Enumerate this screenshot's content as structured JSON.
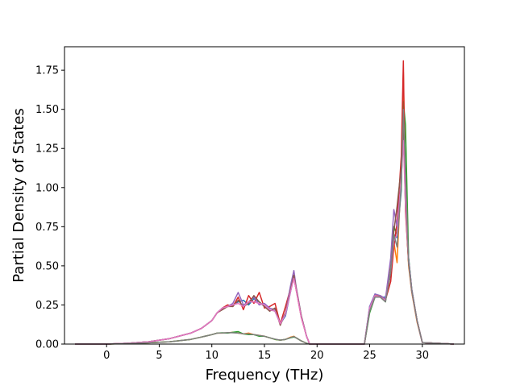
{
  "chart_data": {
    "type": "line",
    "title": "",
    "xlabel": "Frequency (THz)",
    "ylabel": "Partial Density of States",
    "xlim": [
      -4.0,
      34.0
    ],
    "ylim": [
      0.0,
      1.9
    ],
    "xticks": [
      0,
      5,
      10,
      15,
      20,
      25,
      30
    ],
    "xtick_labels": [
      "0",
      "5",
      "10",
      "15",
      "20",
      "25",
      "30"
    ],
    "yticks": [
      0.0,
      0.25,
      0.5,
      0.75,
      1.0,
      1.25,
      1.5,
      1.75
    ],
    "ytick_labels": [
      "0.00",
      "0.25",
      "0.50",
      "0.75",
      "1.00",
      "1.25",
      "1.50",
      "1.75"
    ],
    "grid": false,
    "legend": "none",
    "series": [
      {
        "color": "#1f77b4",
        "x": [
          -3,
          0,
          2,
          4,
          6,
          8,
          9,
          10,
          10.5,
          11,
          11.5,
          12,
          12.5,
          13,
          13.5,
          14,
          14.5,
          15,
          15.5,
          16,
          16.5,
          17,
          17.5,
          17.8,
          18,
          18.5,
          19,
          19.3,
          24.5,
          25,
          25.5,
          26,
          26.5,
          27,
          27.3,
          27.6,
          28,
          28.2,
          28.4,
          28.7,
          29,
          29.5,
          30,
          33
        ],
        "y": [
          0,
          0,
          0.005,
          0.015,
          0.035,
          0.07,
          0.1,
          0.15,
          0.2,
          0.23,
          0.24,
          0.25,
          0.27,
          0.28,
          0.25,
          0.29,
          0.27,
          0.24,
          0.22,
          0.21,
          0.13,
          0.18,
          0.34,
          0.43,
          0.36,
          0.18,
          0.05,
          0,
          0,
          0.24,
          0.32,
          0.3,
          0.3,
          0.45,
          0.7,
          0.68,
          0.98,
          1.62,
          0.95,
          0.55,
          0.35,
          0.15,
          0.01,
          0
        ]
      },
      {
        "color": "#ff7f0e",
        "x": [
          -3,
          0,
          2,
          4,
          6,
          8,
          9,
          10,
          10.5,
          11,
          11.5,
          12,
          12.5,
          13,
          13.5,
          14,
          14.5,
          15,
          15.5,
          16,
          16.5,
          17,
          17.5,
          17.8,
          18,
          18.5,
          19,
          19.3,
          24.5,
          25,
          25.5,
          26,
          26.5,
          27,
          27.3,
          27.6,
          28,
          28.2,
          28.4,
          28.7,
          29,
          29.5,
          30,
          33
        ],
        "y": [
          0,
          0,
          0.003,
          0.008,
          0.015,
          0.03,
          0.045,
          0.06,
          0.07,
          0.07,
          0.072,
          0.075,
          0.07,
          0.065,
          0.07,
          0.06,
          0.055,
          0.05,
          0.04,
          0.03,
          0.025,
          0.03,
          0.045,
          0.05,
          0.04,
          0.02,
          0.005,
          0,
          0,
          0.22,
          0.31,
          0.31,
          0.28,
          0.5,
          0.65,
          0.52,
          1.1,
          1.74,
          0.9,
          0.5,
          0.33,
          0.14,
          0.01,
          0
        ]
      },
      {
        "color": "#2ca02c",
        "x": [
          -3,
          0,
          2,
          4,
          6,
          8,
          9,
          10,
          10.5,
          11,
          11.5,
          12,
          12.5,
          13,
          13.5,
          14,
          14.5,
          15,
          15.5,
          16,
          16.5,
          17,
          17.5,
          17.8,
          18,
          18.5,
          19,
          19.3,
          24.5,
          25,
          25.5,
          26,
          26.5,
          27,
          27.3,
          27.6,
          28,
          28.2,
          28.4,
          28.7,
          29,
          29.5,
          30,
          33
        ],
        "y": [
          0,
          0,
          0.003,
          0.008,
          0.015,
          0.03,
          0.045,
          0.06,
          0.07,
          0.072,
          0.07,
          0.075,
          0.08,
          0.065,
          0.06,
          0.06,
          0.05,
          0.05,
          0.04,
          0.03,
          0.025,
          0.03,
          0.04,
          0.045,
          0.04,
          0.02,
          0.005,
          0,
          0,
          0.2,
          0.3,
          0.3,
          0.27,
          0.48,
          0.75,
          0.7,
          1.0,
          1.55,
          1.4,
          0.55,
          0.35,
          0.15,
          0.01,
          0
        ]
      },
      {
        "color": "#d62728",
        "x": [
          -3,
          0,
          2,
          4,
          6,
          8,
          9,
          10,
          10.5,
          11,
          11.5,
          12,
          12.5,
          13,
          13.5,
          14,
          14.5,
          15,
          15.5,
          16,
          16.5,
          17,
          17.5,
          17.8,
          18,
          18.5,
          19,
          19.3,
          24.5,
          25,
          25.5,
          26,
          26.5,
          27,
          27.3,
          27.6,
          28,
          28.2,
          28.4,
          28.7,
          29,
          29.5,
          30,
          33
        ],
        "y": [
          0,
          0,
          0.005,
          0.015,
          0.035,
          0.07,
          0.1,
          0.15,
          0.2,
          0.23,
          0.25,
          0.24,
          0.3,
          0.22,
          0.31,
          0.26,
          0.33,
          0.23,
          0.24,
          0.26,
          0.13,
          0.24,
          0.36,
          0.42,
          0.35,
          0.17,
          0.05,
          0,
          0,
          0.23,
          0.31,
          0.3,
          0.28,
          0.4,
          0.62,
          0.78,
          1.2,
          1.81,
          0.85,
          0.52,
          0.34,
          0.15,
          0.01,
          0
        ]
      },
      {
        "color": "#9467bd",
        "x": [
          -3,
          0,
          2,
          4,
          6,
          8,
          9,
          10,
          10.5,
          11,
          11.5,
          12,
          12.5,
          13,
          13.5,
          14,
          14.5,
          15,
          15.5,
          16,
          16.5,
          17,
          17.5,
          17.8,
          18,
          18.5,
          19,
          19.3,
          24.5,
          25,
          25.5,
          26,
          26.5,
          27,
          27.3,
          27.6,
          28,
          28.2,
          28.4,
          28.7,
          29,
          29.5,
          30,
          33
        ],
        "y": [
          0,
          0,
          0.005,
          0.015,
          0.035,
          0.07,
          0.1,
          0.15,
          0.2,
          0.23,
          0.24,
          0.26,
          0.33,
          0.25,
          0.27,
          0.3,
          0.25,
          0.26,
          0.23,
          0.22,
          0.13,
          0.2,
          0.38,
          0.47,
          0.37,
          0.18,
          0.05,
          0,
          0,
          0.24,
          0.32,
          0.31,
          0.29,
          0.55,
          0.86,
          0.75,
          1.05,
          1.4,
          0.92,
          0.54,
          0.35,
          0.15,
          0.01,
          0
        ]
      },
      {
        "color": "#8c564b",
        "x": [
          -3,
          0,
          2,
          4,
          6,
          8,
          9,
          10,
          10.5,
          11,
          11.5,
          12,
          12.5,
          13,
          13.5,
          14,
          14.5,
          15,
          15.5,
          16,
          16.5,
          17,
          17.5,
          17.8,
          18,
          18.5,
          19,
          19.3,
          24.5,
          25,
          25.5,
          26,
          26.5,
          27,
          27.3,
          27.6,
          28,
          28.2,
          28.4,
          28.7,
          29,
          29.5,
          30,
          33
        ],
        "y": [
          0,
          0,
          0.005,
          0.015,
          0.035,
          0.07,
          0.1,
          0.15,
          0.2,
          0.22,
          0.24,
          0.24,
          0.28,
          0.24,
          0.26,
          0.31,
          0.27,
          0.24,
          0.21,
          0.23,
          0.12,
          0.2,
          0.35,
          0.44,
          0.36,
          0.18,
          0.05,
          0,
          0,
          0.22,
          0.31,
          0.3,
          0.28,
          0.45,
          0.72,
          0.88,
          1.13,
          1.45,
          0.88,
          0.52,
          0.34,
          0.15,
          0.01,
          0
        ]
      },
      {
        "color": "#e377c2",
        "x": [
          -3,
          0,
          2,
          4,
          6,
          8,
          9,
          10,
          10.5,
          11,
          11.5,
          12,
          12.5,
          13,
          13.5,
          14,
          14.5,
          15,
          15.5,
          16,
          16.5,
          17,
          17.5,
          17.8,
          18,
          18.5,
          19,
          19.3,
          24.5,
          25,
          25.5,
          26,
          26.5,
          27,
          27.3,
          27.6,
          28,
          28.2,
          28.4,
          28.7,
          29,
          29.5,
          30,
          33
        ],
        "y": [
          0,
          0,
          0.005,
          0.015,
          0.035,
          0.07,
          0.1,
          0.15,
          0.2,
          0.23,
          0.24,
          0.25,
          0.26,
          0.24,
          0.27,
          0.27,
          0.26,
          0.25,
          0.22,
          0.21,
          0.13,
          0.19,
          0.34,
          0.42,
          0.35,
          0.17,
          0.05,
          0,
          0,
          0.23,
          0.31,
          0.3,
          0.28,
          0.47,
          0.66,
          0.7,
          1.06,
          1.3,
          0.9,
          0.53,
          0.34,
          0.15,
          0.01,
          0
        ]
      },
      {
        "color": "#7f7f7f",
        "x": [
          -3,
          0,
          2,
          4,
          6,
          8,
          9,
          10,
          10.5,
          11,
          11.5,
          12,
          12.5,
          13,
          13.5,
          14,
          14.5,
          15,
          15.5,
          16,
          16.5,
          17,
          17.5,
          17.8,
          18,
          18.5,
          19,
          19.3,
          24.5,
          25,
          25.5,
          26,
          26.5,
          27,
          27.3,
          27.6,
          28,
          28.2,
          28.4,
          28.7,
          29,
          29.5,
          30,
          33
        ],
        "y": [
          0,
          0,
          0.003,
          0.008,
          0.015,
          0.03,
          0.045,
          0.06,
          0.07,
          0.071,
          0.073,
          0.072,
          0.07,
          0.066,
          0.065,
          0.06,
          0.055,
          0.05,
          0.04,
          0.032,
          0.025,
          0.03,
          0.042,
          0.048,
          0.04,
          0.02,
          0.005,
          0,
          0,
          0.21,
          0.3,
          0.3,
          0.27,
          0.47,
          0.7,
          0.62,
          1.02,
          1.5,
          1.1,
          0.52,
          0.34,
          0.15,
          0.01,
          0
        ]
      }
    ]
  }
}
